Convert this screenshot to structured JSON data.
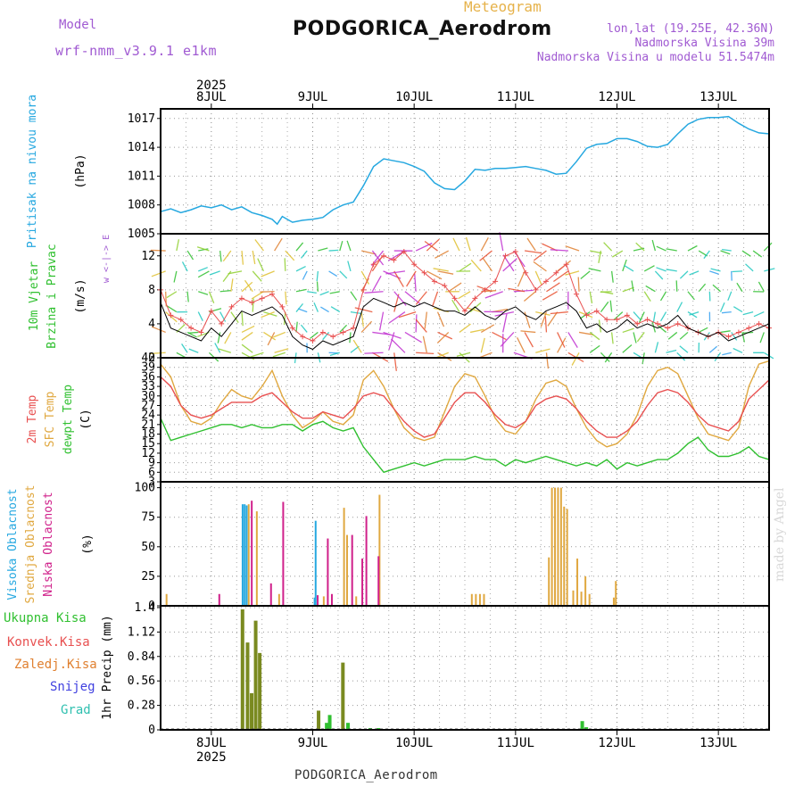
{
  "header": {
    "model_label": "Model",
    "model_name": "wrf-nmm_v3.9.1 e1km",
    "title": "PODGORICA_Aerodrom",
    "meteogram": "Meteogram",
    "lonlat": "lon,lat (19.25E, 42.36N)",
    "elevation": "Nadmorska Visina 39m",
    "elevation_model": "Nadmorska Visina u modelu 51.5474m"
  },
  "footer": "PODGORICA_Aerodrom",
  "watermark": "made by Angel",
  "colors": {
    "pressure": "#26a8e0",
    "temp2m": "#e85050",
    "sfc_temp": "#e0a840",
    "dewpoint": "#30c030",
    "high_cloud": "#26a8e0",
    "mid_cloud": "#e0a840",
    "low_cloud": "#d0208a",
    "total_precip": "#30c030",
    "conv_precip": "#e85050",
    "frozen_precip": "#e08030",
    "snow": "#4040e0",
    "hail": "#30c0b0",
    "precip_bar": "#7a8a20"
  },
  "chart_data": [
    {
      "type": "line",
      "name": "pressure",
      "ylabel_lines": [
        "Pritisak na nivou mora",
        "(hPa)"
      ],
      "ylim": [
        1005,
        1018
      ],
      "yticks": [
        1005,
        1008,
        1011,
        1014,
        1017
      ],
      "x_days": [
        "8JUL",
        "9JUL",
        "10JUL",
        "11JUL",
        "12JUL",
        "13JUL"
      ],
      "year": "2025",
      "series": [
        {
          "x": [
            7.5,
            7.6,
            7.7,
            7.8,
            7.9,
            8.0,
            8.1,
            8.2,
            8.3,
            8.4,
            8.5,
            8.6,
            8.65,
            8.7,
            8.8,
            8.9,
            9.0,
            9.1,
            9.2,
            9.3,
            9.4,
            9.5,
            9.6,
            9.7,
            9.8,
            9.9,
            10.0,
            10.1,
            10.2,
            10.3,
            10.4,
            10.5,
            10.6,
            10.7,
            10.8,
            10.9,
            11.0,
            11.1,
            11.2,
            11.3,
            11.4,
            11.5,
            11.6,
            11.7,
            11.8,
            11.9,
            12.0,
            12.1,
            12.2,
            12.3,
            12.4,
            12.5,
            12.6,
            12.7,
            12.8,
            12.9,
            13.0,
            13.1,
            13.2,
            13.3,
            13.4,
            13.5
          ],
          "values": [
            1007.3,
            1007.6,
            1007.2,
            1007.5,
            1007.9,
            1007.7,
            1008.0,
            1007.5,
            1007.8,
            1007.2,
            1006.9,
            1006.5,
            1006.0,
            1006.8,
            1006.2,
            1006.4,
            1006.5,
            1006.7,
            1007.5,
            1008.0,
            1008.3,
            1010.0,
            1012.0,
            1012.8,
            1012.6,
            1012.4,
            1012.0,
            1011.5,
            1010.3,
            1009.7,
            1009.6,
            1010.5,
            1011.7,
            1011.6,
            1011.8,
            1011.8,
            1011.9,
            1012.0,
            1011.8,
            1011.6,
            1011.2,
            1011.3,
            1012.5,
            1013.9,
            1014.3,
            1014.4,
            1014.9,
            1014.9,
            1014.6,
            1014.1,
            1014.0,
            1014.3,
            1015.4,
            1016.4,
            1016.9,
            1017.1,
            1017.1,
            1017.2,
            1016.5,
            1015.9,
            1015.5,
            1015.4
          ]
        }
      ]
    },
    {
      "type": "line",
      "name": "wind",
      "ylabel_lines": [
        "10m Vjetar",
        "Brzina i Pravac",
        "(m/s)"
      ],
      "legend_compass": "w <-|-> E",
      "ylim": [
        0,
        14.6
      ],
      "yticks": [
        0,
        4,
        8,
        12
      ],
      "series": [
        {
          "name": "speed",
          "x": [
            7.5,
            7.6,
            7.7,
            7.8,
            7.9,
            8.0,
            8.1,
            8.2,
            8.3,
            8.4,
            8.5,
            8.6,
            8.7,
            8.8,
            8.9,
            9.0,
            9.1,
            9.2,
            9.3,
            9.4,
            9.5,
            9.6,
            9.7,
            9.8,
            9.9,
            10.0,
            10.1,
            10.2,
            10.3,
            10.4,
            10.5,
            10.6,
            10.7,
            10.8,
            10.9,
            11.0,
            11.1,
            11.2,
            11.3,
            11.4,
            11.5,
            11.6,
            11.7,
            11.8,
            11.9,
            12.0,
            12.1,
            12.2,
            12.3,
            12.4,
            12.5,
            12.6,
            12.7,
            12.8,
            12.9,
            13.0,
            13.1,
            13.2,
            13.3,
            13.4,
            13.5
          ],
          "values": [
            6.5,
            3.5,
            3.0,
            2.5,
            2.0,
            3.5,
            2.5,
            4.0,
            5.5,
            5.0,
            5.5,
            6.0,
            5.0,
            2.5,
            1.5,
            1.0,
            2.0,
            1.5,
            2.0,
            2.5,
            6.0,
            7.0,
            6.5,
            6.0,
            6.5,
            6.0,
            6.5,
            6.0,
            5.5,
            5.5,
            5.0,
            6.0,
            5.0,
            4.5,
            5.5,
            6.0,
            5.0,
            4.5,
            5.5,
            6.0,
            6.5,
            5.5,
            3.5,
            4.0,
            3.0,
            3.5,
            4.5,
            3.5,
            4.0,
            3.5,
            4.0,
            5.0,
            3.5,
            3.0,
            2.5,
            3.0,
            2.0,
            2.5,
            3.0,
            3.5,
            4.0
          ]
        },
        {
          "name": "gust",
          "x": [
            7.5,
            7.6,
            7.7,
            7.8,
            7.9,
            8.0,
            8.1,
            8.2,
            8.3,
            8.4,
            8.5,
            8.6,
            8.7,
            8.8,
            8.9,
            9.0,
            9.1,
            9.2,
            9.3,
            9.4,
            9.5,
            9.6,
            9.7,
            9.8,
            9.9,
            10.0,
            10.1,
            10.2,
            10.3,
            10.4,
            10.5,
            10.6,
            10.7,
            10.8,
            10.9,
            11.0,
            11.1,
            11.2,
            11.3,
            11.4,
            11.5,
            11.6,
            11.7,
            11.8,
            11.9,
            12.0,
            12.1,
            12.2,
            12.3,
            12.4,
            12.5,
            12.6,
            12.7,
            12.8,
            12.9,
            13.0,
            13.1,
            13.2,
            13.3,
            13.4,
            13.5
          ],
          "values": [
            8.0,
            5.0,
            4.5,
            3.5,
            3.0,
            5.5,
            4.0,
            6.0,
            7.0,
            6.5,
            7.0,
            7.5,
            6.0,
            3.5,
            2.5,
            2.0,
            3.0,
            2.5,
            3.0,
            3.5,
            8.0,
            11.0,
            12.0,
            11.5,
            12.5,
            11.0,
            10.0,
            9.0,
            8.5,
            7.0,
            5.5,
            7.0,
            8.0,
            9.0,
            12.0,
            12.5,
            10.0,
            8.0,
            9.0,
            10.0,
            11.0,
            7.5,
            5.0,
            5.5,
            4.5,
            4.5,
            5.0,
            4.0,
            4.5,
            4.0,
            3.5,
            4.0,
            3.5,
            3.0,
            2.5,
            3.0,
            2.5,
            3.0,
            3.5,
            4.0,
            3.5
          ]
        }
      ]
    },
    {
      "type": "line",
      "name": "temperature",
      "ylabel_lines": [
        "2m Temp",
        "SFC Temp",
        "dewpt Temp",
        "(C)"
      ],
      "ylim": [
        3,
        42
      ],
      "yticks": [
        3,
        6,
        9,
        12,
        15,
        18,
        21,
        24,
        27,
        30,
        33,
        36,
        39,
        42
      ],
      "series": [
        {
          "name": "2m Temp",
          "x": [
            7.5,
            7.6,
            7.7,
            7.8,
            7.9,
            8.0,
            8.1,
            8.2,
            8.3,
            8.4,
            8.5,
            8.6,
            8.7,
            8.8,
            8.9,
            9.0,
            9.1,
            9.2,
            9.3,
            9.4,
            9.5,
            9.6,
            9.7,
            9.8,
            9.9,
            10.0,
            10.1,
            10.2,
            10.3,
            10.4,
            10.5,
            10.6,
            10.7,
            10.8,
            10.9,
            11.0,
            11.1,
            11.2,
            11.3,
            11.4,
            11.5,
            11.6,
            11.7,
            11.8,
            11.9,
            12.0,
            12.1,
            12.2,
            12.3,
            12.4,
            12.5,
            12.6,
            12.7,
            12.8,
            12.9,
            13.0,
            13.1,
            13.2,
            13.3,
            13.4,
            13.5
          ],
          "values": [
            36,
            33,
            27,
            24,
            23,
            24,
            26,
            28,
            28,
            28,
            30,
            31,
            28,
            25,
            23,
            23,
            25,
            24,
            23,
            26,
            30,
            31,
            30,
            26,
            22,
            19,
            17,
            18,
            23,
            28,
            31,
            31,
            28,
            24,
            21,
            20,
            22,
            27,
            29,
            30,
            29,
            26,
            22,
            19,
            17,
            17,
            19,
            22,
            27,
            31,
            32,
            31,
            28,
            24,
            21,
            20,
            19,
            22,
            29,
            32,
            35
          ]
        },
        {
          "name": "SFC Temp",
          "x": [
            7.5,
            7.6,
            7.7,
            7.8,
            7.9,
            8.0,
            8.1,
            8.2,
            8.3,
            8.4,
            8.5,
            8.6,
            8.7,
            8.8,
            8.9,
            9.0,
            9.1,
            9.2,
            9.3,
            9.4,
            9.5,
            9.6,
            9.7,
            9.8,
            9.9,
            10.0,
            10.1,
            10.2,
            10.3,
            10.4,
            10.5,
            10.6,
            10.7,
            10.8,
            10.9,
            11.0,
            11.1,
            11.2,
            11.3,
            11.4,
            11.5,
            11.6,
            11.7,
            11.8,
            11.9,
            12.0,
            12.1,
            12.2,
            12.3,
            12.4,
            12.5,
            12.6,
            12.7,
            12.8,
            12.9,
            13.0,
            13.1,
            13.2,
            13.3,
            13.4,
            13.5
          ],
          "values": [
            40,
            36,
            27,
            22,
            21,
            23,
            28,
            32,
            30,
            29,
            33,
            38,
            30,
            24,
            20,
            22,
            25,
            22,
            21,
            24,
            35,
            38,
            33,
            26,
            20,
            17,
            16,
            17,
            25,
            33,
            37,
            36,
            30,
            23,
            19,
            18,
            22,
            29,
            34,
            35,
            33,
            26,
            20,
            16,
            14,
            15,
            18,
            24,
            33,
            38,
            39,
            37,
            30,
            23,
            18,
            17,
            16,
            20,
            33,
            40,
            41
          ]
        },
        {
          "name": "dewpt Temp",
          "x": [
            7.5,
            7.6,
            7.7,
            7.8,
            7.9,
            8.0,
            8.1,
            8.2,
            8.3,
            8.4,
            8.5,
            8.6,
            8.7,
            8.8,
            8.9,
            9.0,
            9.1,
            9.2,
            9.3,
            9.4,
            9.5,
            9.6,
            9.7,
            9.8,
            9.9,
            10.0,
            10.1,
            10.2,
            10.3,
            10.4,
            10.5,
            10.6,
            10.7,
            10.8,
            10.9,
            11.0,
            11.1,
            11.2,
            11.3,
            11.4,
            11.5,
            11.6,
            11.7,
            11.8,
            11.9,
            12.0,
            12.1,
            12.2,
            12.3,
            12.4,
            12.5,
            12.6,
            12.7,
            12.8,
            12.9,
            13.0,
            13.1,
            13.2,
            13.3,
            13.4,
            13.5
          ],
          "values": [
            23,
            16,
            17,
            18,
            19,
            20,
            21,
            21,
            20,
            21,
            20,
            20,
            21,
            21,
            19,
            21,
            22,
            20,
            19,
            20,
            14,
            10,
            6,
            7,
            8,
            9,
            8,
            9,
            10,
            10,
            10,
            11,
            10,
            10,
            8,
            10,
            9,
            10,
            11,
            10,
            9,
            8,
            9,
            8,
            10,
            7,
            9,
            8,
            9,
            10,
            10,
            12,
            15,
            17,
            13,
            11,
            11,
            12,
            14,
            11,
            10
          ]
        }
      ]
    },
    {
      "type": "bar",
      "name": "clouds",
      "ylabel_lines": [
        "Visoka Oblacnost",
        "Srednja Oblacnost",
        "Niska Oblacnost",
        "(%)"
      ],
      "ylim": [
        0,
        105
      ],
      "yticks": [
        0,
        25,
        50,
        75,
        100
      ],
      "series": [
        {
          "name": "Visoka Oblacnost",
          "x": [
            8.3,
            8.32,
            8.34,
            9.01,
            9.02
          ],
          "values": [
            86,
            86,
            85,
            7,
            72
          ]
        },
        {
          "name": "Srednja Oblacnost",
          "x": [
            7.55,
            8.36,
            8.44,
            8.66,
            9.1,
            9.3,
            9.33,
            9.42,
            9.65,
            10.56,
            10.6,
            10.64,
            10.68,
            11.32,
            11.35,
            11.38,
            11.41,
            11.44,
            11.47,
            11.5,
            11.56,
            11.6,
            11.64,
            11.68,
            11.72,
            11.96,
            11.98
          ],
          "values": [
            10,
            86,
            80,
            10,
            8,
            83,
            60,
            8,
            94,
            10,
            10,
            10,
            10,
            41,
            100,
            100,
            100,
            100,
            84,
            82,
            13,
            40,
            12,
            25,
            10,
            7,
            21
          ]
        },
        {
          "name": "Niska Oblacnost",
          "x": [
            8.07,
            8.39,
            8.58,
            8.7,
            9.04,
            9.14,
            9.18,
            9.38,
            9.48,
            9.52,
            9.64
          ],
          "values": [
            10,
            89,
            19,
            88,
            9,
            57,
            10,
            60,
            40,
            76,
            42
          ]
        }
      ]
    },
    {
      "type": "bar",
      "name": "precipitation",
      "ylabel_lines": [
        "1hr Precip (mm)"
      ],
      "legend": [
        "Ukupna Kisa",
        "Konvek.Kisa",
        "Zaledj.Kisa",
        "Snijeg",
        "Grad"
      ],
      "ylim": [
        0,
        1.42
      ],
      "yticks": [
        0,
        0.28,
        0.56,
        0.84,
        1.12,
        1.4
      ],
      "series": [
        {
          "name": "Ukupna Kisa",
          "x": [
            8.29,
            8.34,
            8.38,
            8.42,
            8.46,
            9.04,
            9.12,
            9.15,
            9.28,
            9.33,
            9.55,
            9.63,
            11.64,
            11.68
          ],
          "values": [
            1.38,
            1.0,
            0.42,
            1.25,
            0.88,
            0.22,
            0.08,
            0.17,
            0.77,
            0.08,
            0.02,
            0.02,
            0.1,
            0.03
          ]
        }
      ]
    }
  ]
}
